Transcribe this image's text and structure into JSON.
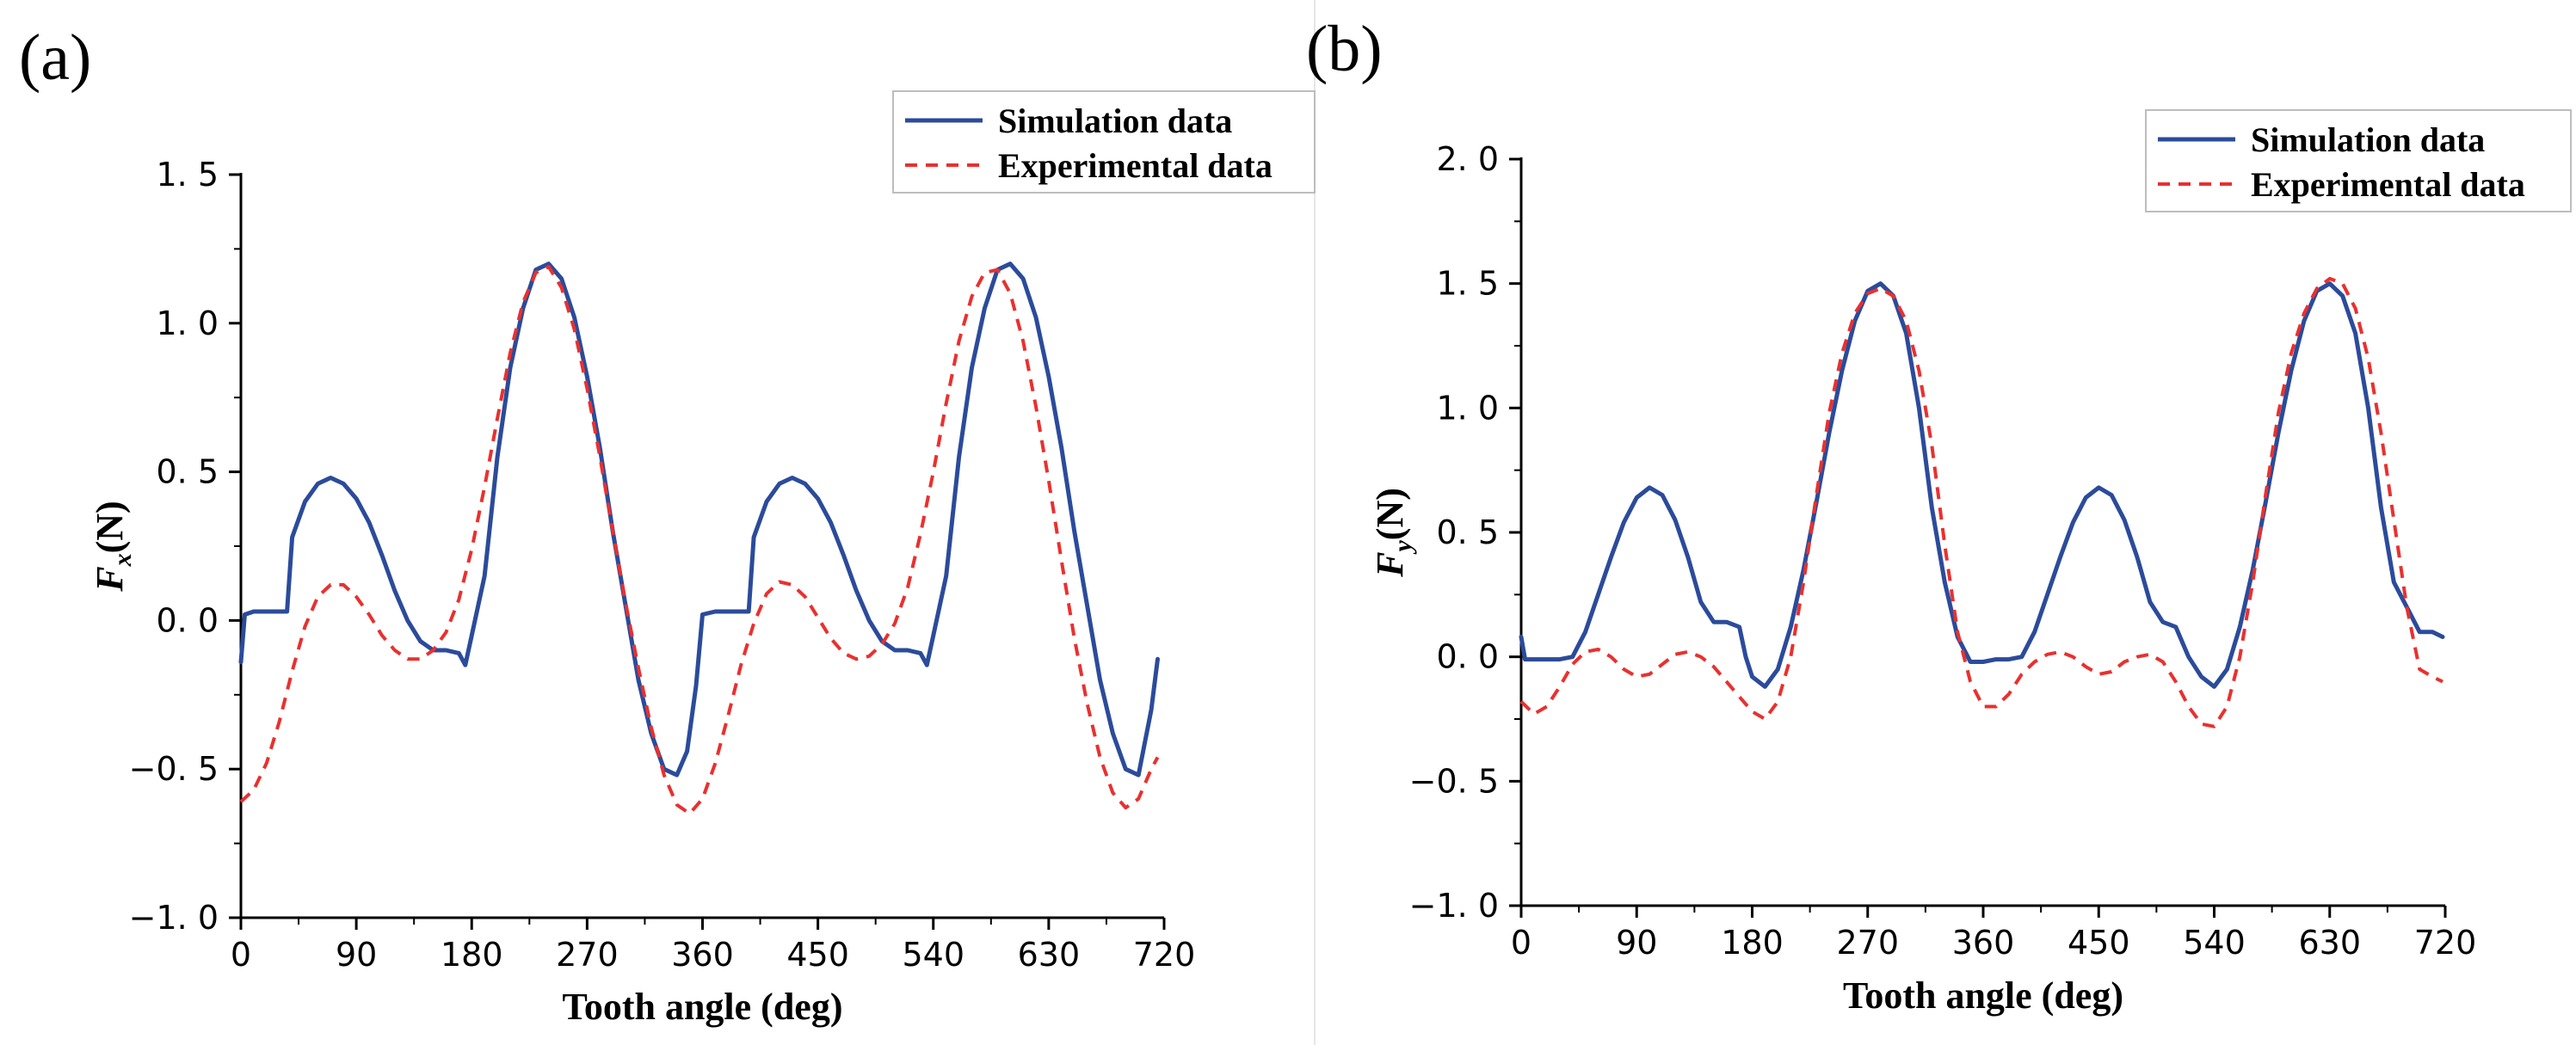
{
  "chart_data": [
    {
      "panel_label": "(a)",
      "type": "line",
      "xlabel": "Tooth angle (deg)",
      "ylabel_main": "F",
      "ylabel_sub": "x",
      "ylabel_unit": "(N)",
      "xlim": [
        0,
        720
      ],
      "ylim": [
        -1.0,
        1.5
      ],
      "x_ticks": [
        0,
        90,
        180,
        270,
        360,
        450,
        540,
        630,
        720
      ],
      "y_ticks": [
        -1.0,
        -0.5,
        0.0,
        0.5,
        1.0,
        1.5
      ],
      "y_tick_labels": [
        "−1. 0",
        "−0. 5",
        "0. 0",
        "0. 5",
        "1. 0",
        "1. 5"
      ],
      "x_tick_labels": [
        "0",
        "90",
        "180",
        "270",
        "360",
        "450",
        "540",
        "630",
        "720"
      ],
      "legend_position": "top-right",
      "series": [
        {
          "name": "Simulation data",
          "color": "#2b4b9b",
          "style": "solid",
          "x": [
            0,
            3,
            10,
            20,
            30,
            36,
            40,
            50,
            60,
            70,
            80,
            90,
            100,
            110,
            120,
            130,
            140,
            150,
            160,
            170,
            175,
            180,
            190,
            200,
            210,
            220,
            230,
            240,
            250,
            260,
            270,
            280,
            290,
            300,
            310,
            320,
            330,
            340,
            348,
            355,
            360,
            370,
            380,
            390,
            396,
            400,
            410,
            420,
            430,
            440,
            450,
            460,
            470,
            480,
            490,
            500,
            510,
            520,
            530,
            535,
            540,
            550,
            560,
            570,
            580,
            590,
            600,
            610,
            620,
            630,
            640,
            650,
            660,
            670,
            680,
            690,
            700,
            710,
            715
          ],
          "y": [
            -0.14,
            0.02,
            0.03,
            0.03,
            0.03,
            0.03,
            0.28,
            0.4,
            0.46,
            0.48,
            0.46,
            0.41,
            0.33,
            0.22,
            0.1,
            0.0,
            -0.07,
            -0.1,
            -0.1,
            -0.11,
            -0.15,
            -0.05,
            0.15,
            0.55,
            0.85,
            1.05,
            1.18,
            1.2,
            1.15,
            1.02,
            0.82,
            0.58,
            0.3,
            0.05,
            -0.2,
            -0.38,
            -0.5,
            -0.52,
            -0.44,
            -0.22,
            0.02,
            0.03,
            0.03,
            0.03,
            0.03,
            0.28,
            0.4,
            0.46,
            0.48,
            0.46,
            0.41,
            0.33,
            0.22,
            0.1,
            0.0,
            -0.07,
            -0.1,
            -0.1,
            -0.11,
            -0.15,
            -0.05,
            0.15,
            0.55,
            0.85,
            1.05,
            1.18,
            1.2,
            1.15,
            1.02,
            0.82,
            0.58,
            0.3,
            0.05,
            -0.2,
            -0.38,
            -0.5,
            -0.52,
            -0.3,
            -0.13
          ]
        },
        {
          "name": "Experimental data",
          "color": "#e8312f",
          "style": "dashed",
          "x": [
            0,
            10,
            20,
            30,
            40,
            50,
            60,
            70,
            80,
            90,
            100,
            110,
            120,
            130,
            140,
            150,
            160,
            170,
            180,
            190,
            200,
            210,
            220,
            230,
            240,
            250,
            260,
            270,
            280,
            290,
            300,
            310,
            320,
            330,
            340,
            350,
            360,
            370,
            380,
            390,
            400,
            410,
            420,
            430,
            440,
            450,
            460,
            470,
            480,
            490,
            500,
            510,
            520,
            530,
            540,
            550,
            560,
            570,
            580,
            590,
            600,
            610,
            620,
            630,
            640,
            650,
            660,
            670,
            680,
            690,
            700,
            710,
            715
          ],
          "y": [
            -0.61,
            -0.57,
            -0.48,
            -0.34,
            -0.17,
            -0.02,
            0.08,
            0.12,
            0.12,
            0.08,
            0.02,
            -0.05,
            -0.1,
            -0.13,
            -0.13,
            -0.1,
            -0.04,
            0.07,
            0.24,
            0.45,
            0.68,
            0.9,
            1.07,
            1.17,
            1.19,
            1.12,
            0.98,
            0.78,
            0.55,
            0.3,
            0.06,
            -0.16,
            -0.36,
            -0.52,
            -0.62,
            -0.65,
            -0.6,
            -0.48,
            -0.32,
            -0.15,
            -0.01,
            0.09,
            0.13,
            0.12,
            0.08,
            0.01,
            -0.06,
            -0.11,
            -0.13,
            -0.12,
            -0.08,
            -0.01,
            0.11,
            0.29,
            0.5,
            0.73,
            0.94,
            1.09,
            1.17,
            1.18,
            1.1,
            0.94,
            0.72,
            0.47,
            0.2,
            -0.06,
            -0.28,
            -0.46,
            -0.58,
            -0.63,
            -0.6,
            -0.5,
            -0.46
          ]
        }
      ]
    },
    {
      "panel_label": "(b)",
      "type": "line",
      "xlabel": "Tooth angle (deg)",
      "ylabel_main": "F",
      "ylabel_sub": "y",
      "ylabel_unit": "(N)",
      "xlim": [
        0,
        720
      ],
      "ylim": [
        -1.0,
        2.0
      ],
      "x_ticks": [
        0,
        90,
        180,
        270,
        360,
        450,
        540,
        630,
        720
      ],
      "y_ticks": [
        -1.0,
        -0.5,
        0.0,
        0.5,
        1.0,
        1.5,
        2.0
      ],
      "y_tick_labels": [
        "−1. 0",
        "−0. 5",
        "0. 0",
        "0. 5",
        "1. 0",
        "1. 5",
        "2. 0"
      ],
      "x_tick_labels": [
        "0",
        "90",
        "180",
        "270",
        "360",
        "450",
        "540",
        "630",
        "720"
      ],
      "legend_position": "top-right",
      "series": [
        {
          "name": "Simulation data",
          "color": "#2b4b9b",
          "style": "solid",
          "x": [
            0,
            3,
            10,
            20,
            30,
            40,
            50,
            60,
            70,
            80,
            90,
            100,
            110,
            120,
            130,
            140,
            150,
            160,
            170,
            175,
            180,
            190,
            200,
            210,
            220,
            230,
            240,
            250,
            260,
            270,
            280,
            290,
            300,
            310,
            320,
            330,
            340,
            350,
            360,
            370,
            380,
            390,
            400,
            410,
            420,
            430,
            440,
            450,
            460,
            470,
            480,
            490,
            500,
            510,
            520,
            530,
            540,
            550,
            560,
            570,
            580,
            590,
            600,
            610,
            620,
            630,
            640,
            650,
            660,
            670,
            680,
            690,
            700,
            710,
            718
          ],
          "y": [
            0.08,
            -0.01,
            -0.01,
            -0.01,
            -0.01,
            0.0,
            0.1,
            0.25,
            0.4,
            0.54,
            0.64,
            0.68,
            0.65,
            0.55,
            0.4,
            0.22,
            0.14,
            0.14,
            0.12,
            0.0,
            -0.08,
            -0.12,
            -0.05,
            0.12,
            0.35,
            0.62,
            0.9,
            1.15,
            1.35,
            1.47,
            1.5,
            1.45,
            1.3,
            1.0,
            0.6,
            0.3,
            0.08,
            -0.02,
            -0.02,
            -0.01,
            -0.01,
            0.0,
            0.1,
            0.25,
            0.4,
            0.54,
            0.64,
            0.68,
            0.65,
            0.55,
            0.4,
            0.22,
            0.14,
            0.12,
            0.0,
            -0.08,
            -0.12,
            -0.05,
            0.12,
            0.35,
            0.62,
            0.9,
            1.15,
            1.35,
            1.47,
            1.5,
            1.45,
            1.3,
            1.0,
            0.6,
            0.3,
            0.2,
            0.1,
            0.1,
            0.08
          ]
        },
        {
          "name": "Experimental data",
          "color": "#e8312f",
          "style": "dashed",
          "x": [
            0,
            10,
            20,
            30,
            40,
            50,
            60,
            70,
            80,
            90,
            100,
            110,
            120,
            130,
            140,
            150,
            160,
            170,
            180,
            190,
            200,
            210,
            220,
            230,
            240,
            250,
            260,
            270,
            280,
            290,
            300,
            310,
            320,
            330,
            340,
            350,
            360,
            370,
            380,
            390,
            400,
            410,
            420,
            430,
            440,
            450,
            460,
            470,
            480,
            490,
            500,
            510,
            520,
            530,
            540,
            550,
            560,
            570,
            580,
            590,
            600,
            610,
            620,
            630,
            640,
            650,
            660,
            670,
            680,
            690,
            700,
            710,
            718
          ],
          "y": [
            -0.18,
            -0.23,
            -0.2,
            -0.12,
            -0.03,
            0.02,
            0.03,
            0.0,
            -0.05,
            -0.08,
            -0.07,
            -0.03,
            0.01,
            0.02,
            0.0,
            -0.04,
            -0.1,
            -0.16,
            -0.22,
            -0.25,
            -0.18,
            0.0,
            0.3,
            0.65,
            0.98,
            1.22,
            1.38,
            1.46,
            1.48,
            1.45,
            1.35,
            1.15,
            0.85,
            0.45,
            0.1,
            -0.1,
            -0.2,
            -0.2,
            -0.15,
            -0.07,
            -0.02,
            0.01,
            0.02,
            0.0,
            -0.04,
            -0.07,
            -0.06,
            -0.02,
            0.0,
            0.01,
            -0.02,
            -0.1,
            -0.2,
            -0.27,
            -0.28,
            -0.2,
            0.0,
            0.3,
            0.65,
            0.98,
            1.22,
            1.38,
            1.48,
            1.52,
            1.5,
            1.4,
            1.2,
            0.9,
            0.55,
            0.2,
            -0.05,
            -0.08,
            -0.1
          ]
        }
      ]
    }
  ]
}
